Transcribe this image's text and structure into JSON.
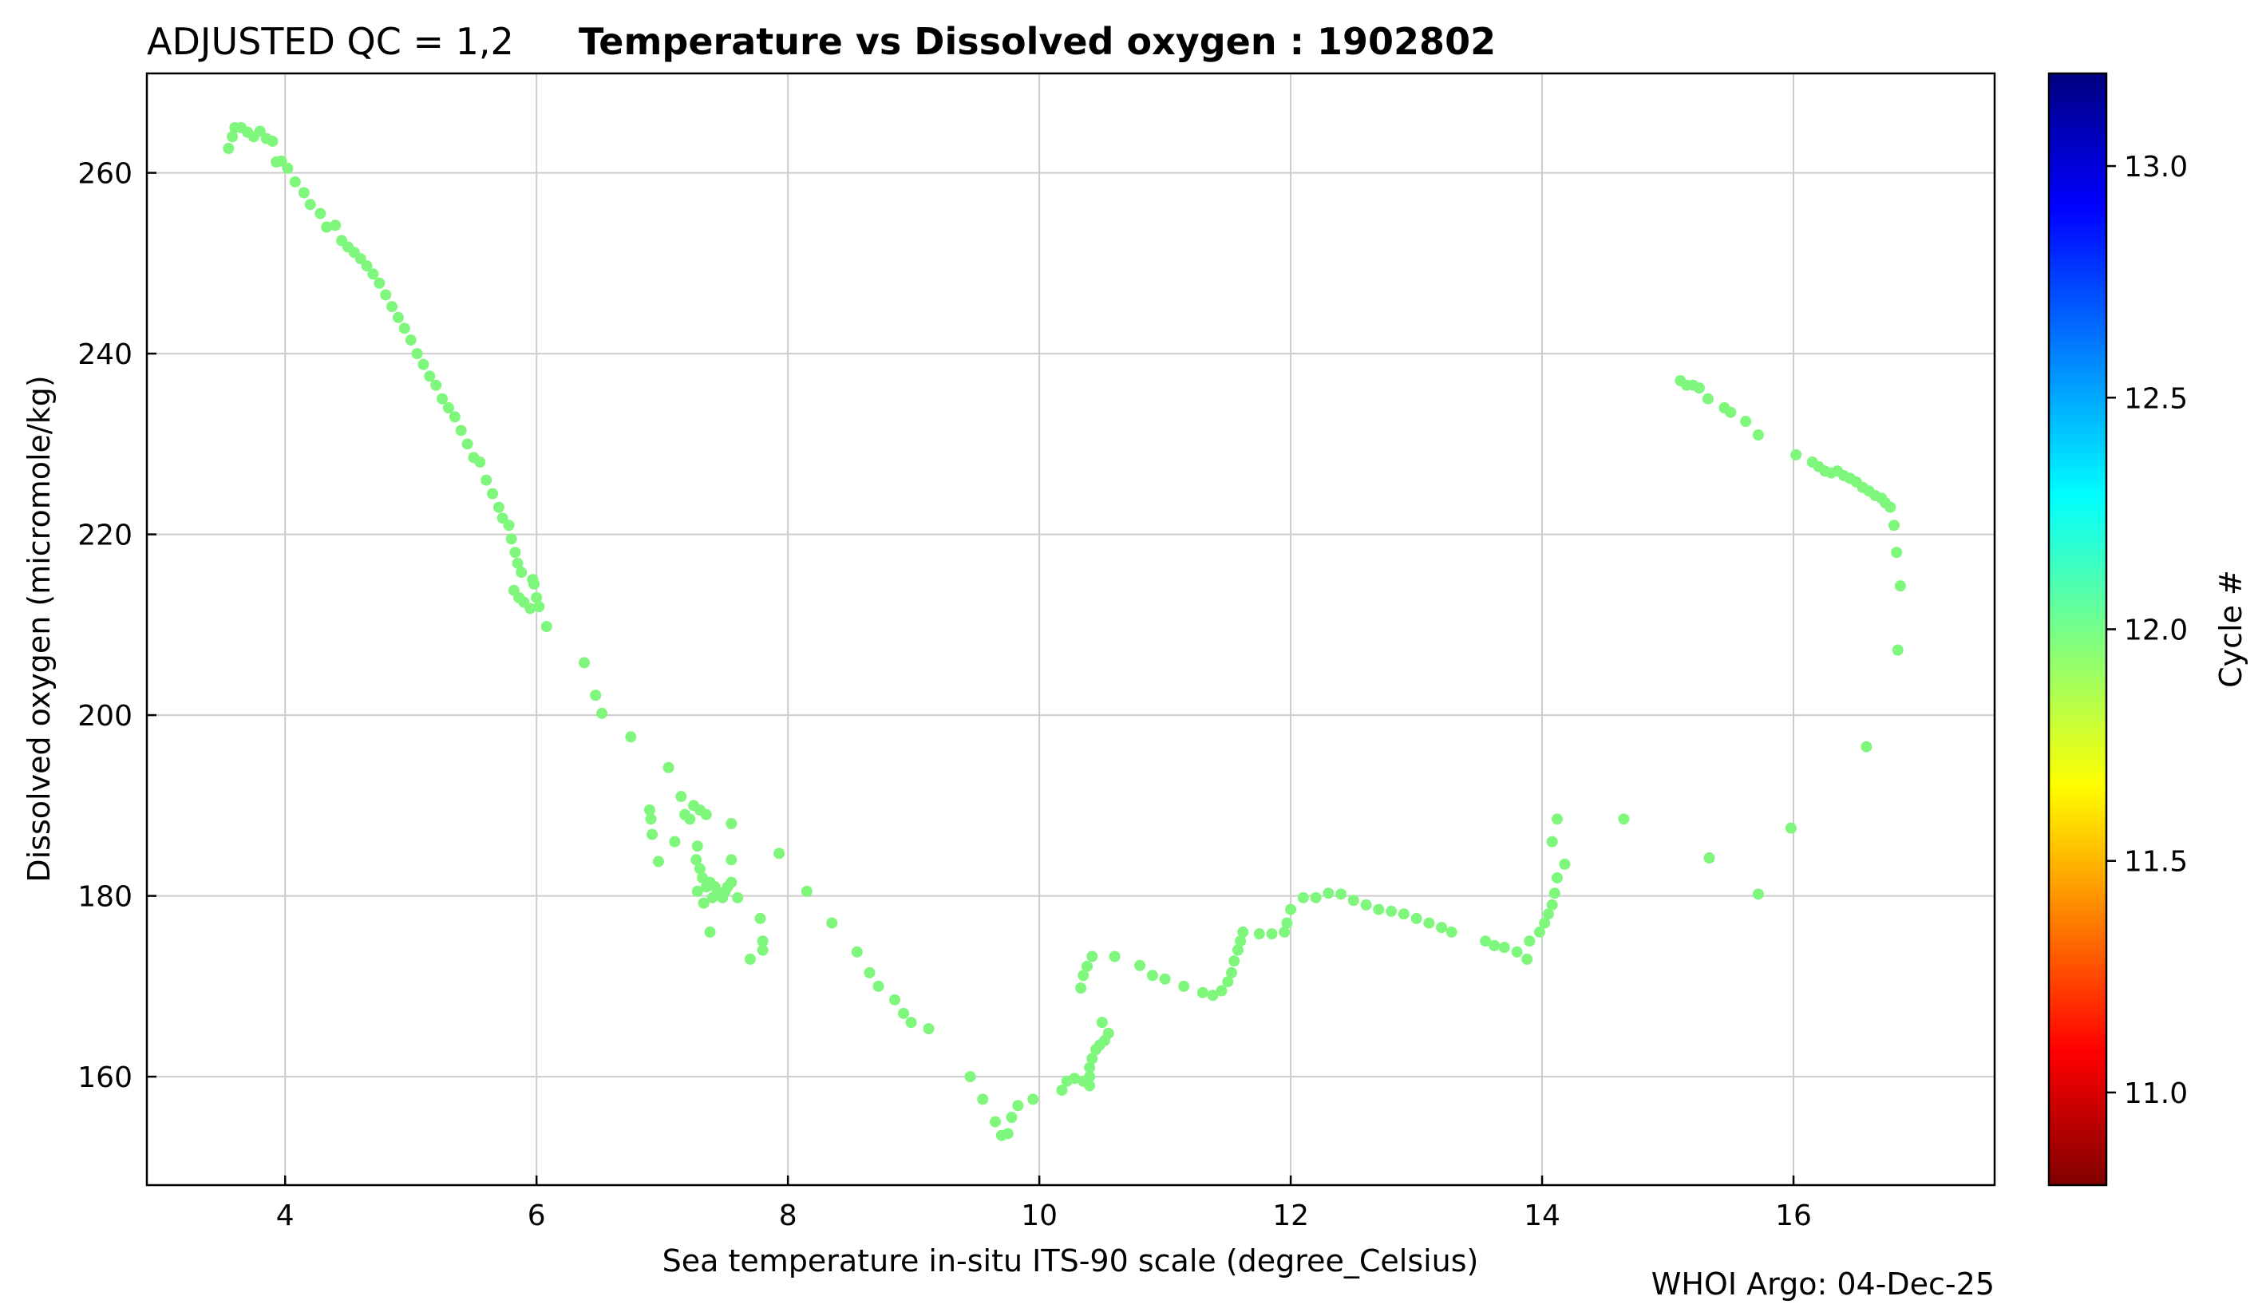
{
  "header": {
    "qc_label": "ADJUSTED QC = 1,2",
    "title": "Temperature vs Dissolved oxygen : 1902802"
  },
  "footer": {
    "credit": "WHOI Argo: 04-Dec-25"
  },
  "colorbar": {
    "label": "Cycle #",
    "range": [
      10.8,
      13.2
    ],
    "ticks": [
      "11.0",
      "11.5",
      "12.0",
      "12.5",
      "13.0"
    ],
    "tick_values": [
      11.0,
      11.5,
      12.0,
      12.5,
      13.0
    ],
    "colormap": "jet-reversed"
  },
  "chart_data": {
    "type": "scatter",
    "title": "Temperature vs Dissolved oxygen : 1902802",
    "xlabel": "Sea temperature in-situ ITS-90 scale  (degree_Celsius)",
    "ylabel": "Dissolved oxygen  (micromole/kg)",
    "xlim": [
      2.9,
      17.6
    ],
    "ylim": [
      148,
      271
    ],
    "x_ticks": [
      4,
      6,
      8,
      10,
      12,
      14,
      16
    ],
    "y_ticks": [
      160,
      180,
      200,
      220,
      240,
      260
    ],
    "grid": true,
    "point_color": "#7ef77c",
    "series": [
      {
        "cycle": 12.0,
        "points": [
          [
            3.55,
            262.7
          ],
          [
            3.58,
            264.0
          ],
          [
            3.6,
            265.0
          ],
          [
            3.65,
            265.0
          ],
          [
            3.7,
            264.5
          ],
          [
            3.75,
            264.0
          ],
          [
            3.8,
            264.6
          ],
          [
            3.85,
            263.8
          ],
          [
            3.9,
            263.5
          ],
          [
            3.93,
            261.2
          ],
          [
            3.97,
            261.3
          ],
          [
            4.02,
            260.5
          ],
          [
            4.08,
            259.0
          ],
          [
            4.15,
            257.8
          ],
          [
            4.2,
            256.5
          ],
          [
            4.28,
            255.5
          ],
          [
            4.33,
            254.0
          ],
          [
            4.4,
            254.2
          ],
          [
            4.45,
            252.5
          ],
          [
            4.5,
            251.8
          ],
          [
            4.55,
            251.2
          ],
          [
            4.6,
            250.5
          ],
          [
            4.65,
            249.7
          ],
          [
            4.7,
            248.8
          ],
          [
            4.75,
            247.8
          ],
          [
            4.8,
            246.5
          ],
          [
            4.85,
            245.2
          ],
          [
            4.9,
            244.0
          ],
          [
            4.95,
            242.8
          ],
          [
            5.0,
            241.5
          ],
          [
            5.05,
            240.0
          ],
          [
            5.1,
            238.8
          ],
          [
            5.15,
            237.5
          ],
          [
            5.2,
            236.5
          ],
          [
            5.25,
            235.0
          ],
          [
            5.3,
            234.0
          ],
          [
            5.35,
            233.0
          ],
          [
            5.4,
            231.5
          ],
          [
            5.45,
            230.0
          ],
          [
            5.5,
            228.5
          ],
          [
            5.55,
            228.0
          ],
          [
            5.6,
            226.0
          ],
          [
            5.65,
            224.5
          ],
          [
            5.7,
            223.0
          ],
          [
            5.73,
            221.8
          ],
          [
            5.78,
            221.0
          ],
          [
            5.8,
            219.5
          ],
          [
            5.83,
            218.0
          ],
          [
            5.85,
            216.8
          ],
          [
            5.88,
            215.8
          ],
          [
            5.82,
            213.8
          ],
          [
            5.86,
            213.0
          ],
          [
            5.9,
            212.5
          ],
          [
            5.95,
            211.8
          ],
          [
            5.98,
            214.5
          ],
          [
            6.0,
            213.0
          ],
          [
            6.02,
            212.0
          ],
          [
            5.97,
            215.0
          ],
          [
            6.08,
            209.8
          ],
          [
            6.38,
            205.8
          ],
          [
            6.47,
            202.2
          ],
          [
            6.52,
            200.2
          ],
          [
            6.75,
            197.6
          ],
          [
            6.9,
            189.5
          ],
          [
            6.91,
            188.5
          ],
          [
            6.92,
            186.8
          ],
          [
            6.97,
            183.8
          ],
          [
            7.05,
            194.2
          ],
          [
            7.1,
            186.0
          ],
          [
            7.15,
            191.0
          ],
          [
            7.18,
            189.0
          ],
          [
            7.22,
            188.5
          ],
          [
            7.25,
            190.0
          ],
          [
            7.28,
            185.5
          ],
          [
            7.3,
            189.5
          ],
          [
            7.27,
            184.0
          ],
          [
            7.3,
            183.0
          ],
          [
            7.32,
            182.0
          ],
          [
            7.35,
            181.0
          ],
          [
            7.28,
            180.5
          ],
          [
            7.33,
            179.2
          ],
          [
            7.38,
            181.5
          ],
          [
            7.42,
            181.0
          ],
          [
            7.45,
            180.2
          ],
          [
            7.48,
            179.8
          ],
          [
            7.5,
            180.5
          ],
          [
            7.52,
            181.0
          ],
          [
            7.4,
            179.8
          ],
          [
            7.35,
            189.0
          ],
          [
            7.55,
            188.0
          ],
          [
            7.55,
            184.0
          ],
          [
            7.55,
            181.5
          ],
          [
            7.6,
            179.8
          ],
          [
            7.38,
            176.0
          ],
          [
            7.7,
            173.0
          ],
          [
            7.78,
            177.5
          ],
          [
            7.8,
            175.0
          ],
          [
            7.8,
            174.0
          ],
          [
            7.93,
            184.7
          ],
          [
            8.15,
            180.5
          ],
          [
            8.35,
            177.0
          ],
          [
            8.55,
            173.8
          ],
          [
            8.65,
            171.5
          ],
          [
            8.72,
            170.0
          ],
          [
            8.85,
            168.5
          ],
          [
            8.92,
            167.0
          ],
          [
            8.98,
            166.0
          ],
          [
            9.12,
            165.3
          ],
          [
            9.45,
            160.0
          ],
          [
            9.55,
            157.5
          ],
          [
            9.65,
            155.0
          ],
          [
            9.7,
            153.5
          ],
          [
            9.75,
            153.7
          ],
          [
            9.78,
            155.5
          ],
          [
            9.83,
            156.8
          ],
          [
            9.95,
            157.5
          ],
          [
            10.18,
            158.5
          ],
          [
            10.22,
            159.5
          ],
          [
            10.28,
            159.8
          ],
          [
            10.35,
            159.5
          ],
          [
            10.4,
            159.0
          ],
          [
            10.4,
            160.0
          ],
          [
            10.4,
            161.0
          ],
          [
            10.42,
            162.0
          ],
          [
            10.45,
            163.0
          ],
          [
            10.48,
            163.5
          ],
          [
            10.52,
            164.0
          ],
          [
            10.55,
            164.8
          ],
          [
            10.5,
            166.0
          ],
          [
            10.33,
            169.8
          ],
          [
            10.35,
            171.2
          ],
          [
            10.38,
            172.2
          ],
          [
            10.42,
            173.3
          ],
          [
            10.6,
            173.3
          ],
          [
            10.8,
            172.3
          ],
          [
            10.9,
            171.2
          ],
          [
            11.0,
            170.8
          ],
          [
            11.15,
            170.0
          ],
          [
            11.3,
            169.3
          ],
          [
            11.38,
            169.0
          ],
          [
            11.45,
            169.5
          ],
          [
            11.5,
            170.5
          ],
          [
            11.53,
            171.5
          ],
          [
            11.55,
            172.8
          ],
          [
            11.58,
            174.0
          ],
          [
            11.6,
            175.0
          ],
          [
            11.62,
            176.0
          ],
          [
            11.75,
            175.8
          ],
          [
            11.85,
            175.8
          ],
          [
            11.95,
            176.0
          ],
          [
            11.97,
            177.0
          ],
          [
            12.0,
            178.5
          ],
          [
            12.1,
            179.8
          ],
          [
            12.2,
            179.8
          ],
          [
            12.3,
            180.3
          ],
          [
            12.4,
            180.2
          ],
          [
            12.5,
            179.5
          ],
          [
            12.6,
            179.0
          ],
          [
            12.7,
            178.5
          ],
          [
            12.8,
            178.3
          ],
          [
            12.9,
            178.0
          ],
          [
            13.0,
            177.5
          ],
          [
            13.1,
            177.0
          ],
          [
            13.2,
            176.5
          ],
          [
            13.28,
            176.0
          ],
          [
            13.55,
            175.0
          ],
          [
            13.62,
            174.5
          ],
          [
            13.7,
            174.3
          ],
          [
            13.8,
            173.8
          ],
          [
            13.88,
            173.0
          ],
          [
            13.9,
            175.0
          ],
          [
            13.98,
            176.0
          ],
          [
            14.02,
            177.0
          ],
          [
            14.05,
            178.0
          ],
          [
            14.08,
            179.0
          ],
          [
            14.1,
            180.3
          ],
          [
            14.12,
            182.0
          ],
          [
            14.18,
            183.5
          ],
          [
            14.08,
            186.0
          ],
          [
            14.12,
            188.5
          ],
          [
            14.65,
            188.5
          ],
          [
            15.1,
            237.0
          ],
          [
            15.15,
            236.5
          ],
          [
            15.2,
            236.5
          ],
          [
            15.25,
            236.2
          ],
          [
            15.32,
            235.0
          ],
          [
            15.45,
            234.0
          ],
          [
            15.5,
            233.5
          ],
          [
            15.62,
            232.5
          ],
          [
            15.72,
            231.0
          ],
          [
            16.02,
            228.8
          ],
          [
            16.15,
            228.0
          ],
          [
            16.2,
            227.5
          ],
          [
            16.25,
            227.0
          ],
          [
            16.3,
            226.8
          ],
          [
            16.35,
            227.0
          ],
          [
            16.4,
            226.5
          ],
          [
            16.45,
            226.2
          ],
          [
            16.5,
            225.8
          ],
          [
            16.55,
            225.2
          ],
          [
            16.6,
            224.8
          ],
          [
            16.65,
            224.3
          ],
          [
            16.7,
            224.0
          ],
          [
            16.73,
            223.5
          ],
          [
            16.77,
            223.0
          ],
          [
            16.8,
            221.0
          ],
          [
            16.82,
            218.0
          ],
          [
            16.85,
            214.3
          ],
          [
            16.83,
            207.2
          ],
          [
            16.58,
            196.5
          ],
          [
            15.33,
            184.2
          ],
          [
            15.72,
            180.2
          ],
          [
            15.98,
            187.5
          ]
        ]
      }
    ]
  }
}
